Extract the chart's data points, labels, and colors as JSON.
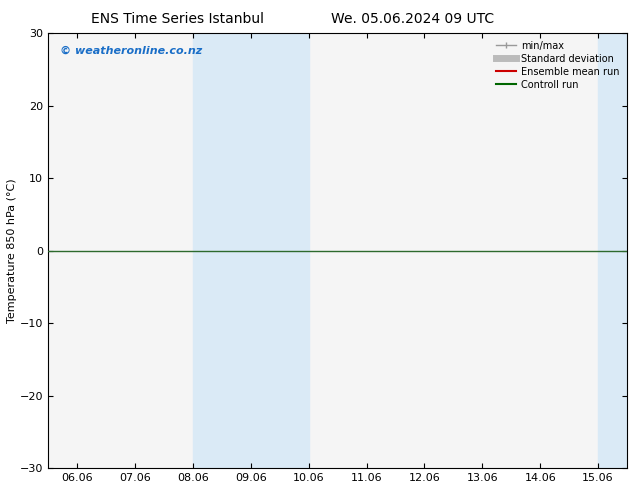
{
  "title_left": "ENS Time Series Istanbul",
  "title_right": "We. 05.06.2024 09 UTC",
  "ylabel": "Temperature 850 hPa (°C)",
  "xlabel": "",
  "ylim": [
    -30,
    30
  ],
  "yticks": [
    -30,
    -20,
    -10,
    0,
    10,
    20,
    30
  ],
  "xtick_labels": [
    "06.06",
    "07.06",
    "08.06",
    "09.06",
    "10.06",
    "11.06",
    "12.06",
    "13.06",
    "14.06",
    "15.06"
  ],
  "xtick_positions": [
    0,
    1,
    2,
    3,
    4,
    5,
    6,
    7,
    8,
    9
  ],
  "xlim": [
    -0.5,
    9.5
  ],
  "shaded_bands": [
    {
      "x_start": 2.0,
      "x_end": 3.0
    },
    {
      "x_start": 3.0,
      "x_end": 4.0
    },
    {
      "x_start": 9.0,
      "x_end": 9.5
    }
  ],
  "shaded_color": "#daeaf6",
  "zero_line_color": "#2d6a2d",
  "zero_line_y": 0,
  "watermark": "© weatheronline.co.nz",
  "watermark_color": "#1a6ec7",
  "legend_entries": [
    {
      "label": "min/max",
      "color": "#999999",
      "lw": 1.0
    },
    {
      "label": "Standard deviation",
      "color": "#bbbbbb",
      "lw": 5
    },
    {
      "label": "Ensemble mean run",
      "color": "#cc0000",
      "lw": 1.5
    },
    {
      "label": "Controll run",
      "color": "#006600",
      "lw": 1.5
    }
  ],
  "background_color": "#ffffff",
  "plot_bg_color": "#f5f5f5",
  "border_color": "#000000",
  "title_fontsize": 10,
  "axis_label_fontsize": 8,
  "tick_fontsize": 8,
  "watermark_fontsize": 8,
  "legend_fontsize": 7
}
